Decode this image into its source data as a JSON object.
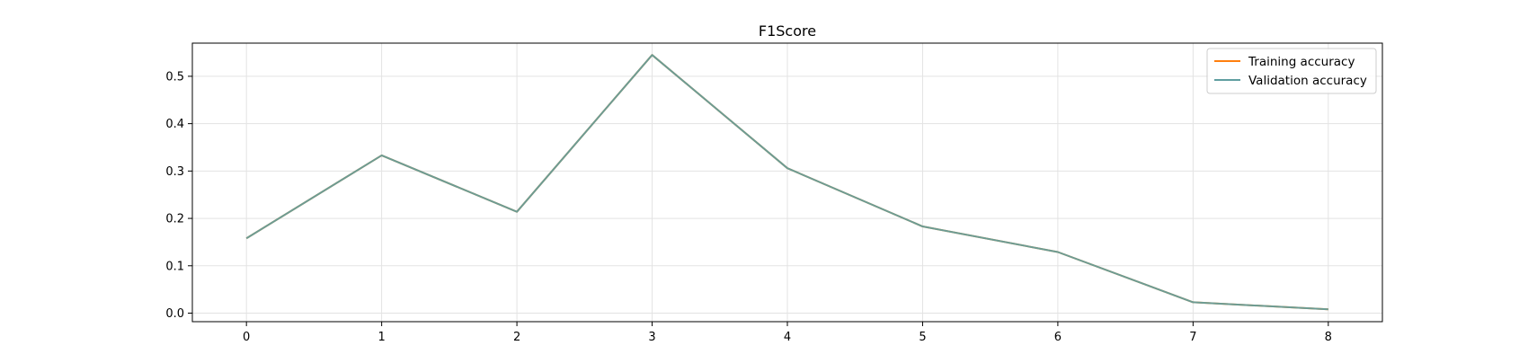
{
  "chart_data": {
    "type": "line",
    "title": "F1Score",
    "xlabel": "",
    "ylabel": "",
    "x": [
      0,
      1,
      2,
      3,
      4,
      5,
      6,
      7,
      8
    ],
    "xlim": [
      -0.4,
      8.4
    ],
    "ylim": [
      -0.018,
      0.57
    ],
    "xticks": [
      "0",
      "1",
      "2",
      "3",
      "4",
      "5",
      "6",
      "7",
      "8"
    ],
    "yticks": [
      0.0,
      0.1,
      0.2,
      0.3,
      0.4,
      0.5
    ],
    "ytick_labels": [
      "0.0",
      "0.1",
      "0.2",
      "0.3",
      "0.4",
      "0.5"
    ],
    "grid": true,
    "legend_position": "top-right",
    "series": [
      {
        "name": "Training accuracy",
        "color": "#ff7f0e",
        "values": [
          0.158,
          0.333,
          0.214,
          0.545,
          0.306,
          0.183,
          0.129,
          0.023,
          0.008
        ]
      },
      {
        "name": "Validation accuracy",
        "color": "#5f9ea0",
        "values": [
          0.158,
          0.333,
          0.214,
          0.545,
          0.306,
          0.183,
          0.129,
          0.023,
          0.008
        ]
      }
    ]
  }
}
